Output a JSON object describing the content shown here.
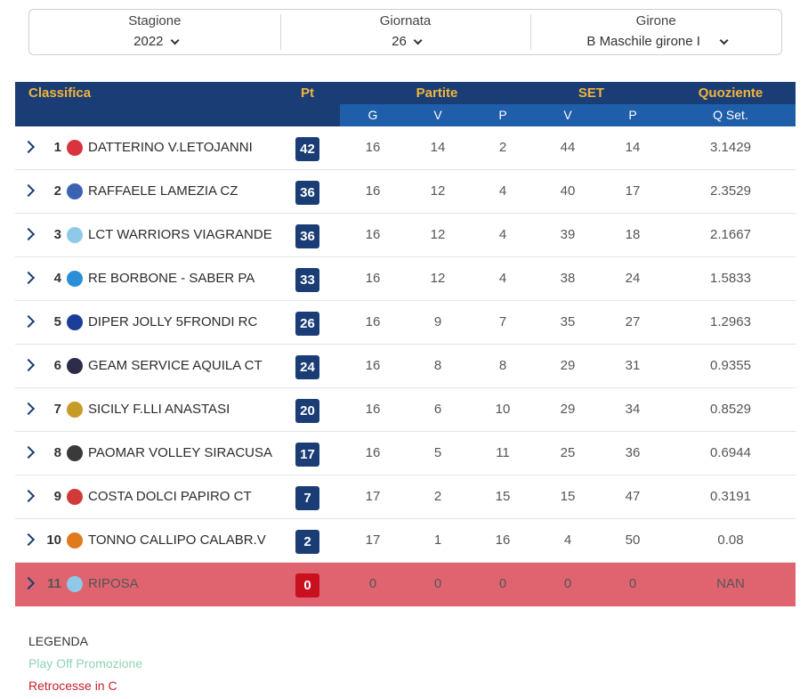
{
  "filters": [
    {
      "label": "Stagione",
      "value": "2022"
    },
    {
      "label": "Giornata",
      "value": "26"
    },
    {
      "label": "Girone",
      "value": "B Maschile girone I"
    }
  ],
  "table": {
    "headers": {
      "classifica": "Classifica",
      "pt": "Pt",
      "partite": "Partite",
      "set": "SET",
      "quoziente": "Quoziente",
      "g": "G",
      "v": "V",
      "p": "P",
      "set_v": "V",
      "set_p": "P",
      "qset": "Q Set."
    },
    "rows": [
      {
        "pos": "1",
        "team": "DATTERINO V.LETOJANNI",
        "pt": "42",
        "g": "16",
        "v": "14",
        "p": "2",
        "sv": "44",
        "sp": "14",
        "q": "3.1429",
        "logo_color": "#d9343d"
      },
      {
        "pos": "2",
        "team": "RAFFAELE LAMEZIA CZ",
        "pt": "36",
        "g": "16",
        "v": "12",
        "p": "4",
        "sv": "40",
        "sp": "17",
        "q": "2.3529",
        "logo_color": "#3a62b0"
      },
      {
        "pos": "3",
        "team": "LCT WARRIORS VIAGRANDE",
        "pt": "36",
        "g": "16",
        "v": "12",
        "p": "4",
        "sv": "39",
        "sp": "18",
        "q": "2.1667",
        "logo_color": "#8ec9e8"
      },
      {
        "pos": "4",
        "team": "RE BORBONE - SABER PA",
        "pt": "33",
        "g": "16",
        "v": "12",
        "p": "4",
        "sv": "38",
        "sp": "24",
        "q": "1.5833",
        "logo_color": "#2a8fd6"
      },
      {
        "pos": "5",
        "team": "DIPER JOLLY 5FRONDI RC",
        "pt": "26",
        "g": "16",
        "v": "9",
        "p": "7",
        "sv": "35",
        "sp": "27",
        "q": "1.2963",
        "logo_color": "#1b3d9a"
      },
      {
        "pos": "6",
        "team": "GEAM SERVICE AQUILA CT",
        "pt": "24",
        "g": "16",
        "v": "8",
        "p": "8",
        "sv": "29",
        "sp": "31",
        "q": "0.9355",
        "logo_color": "#2c2c4a"
      },
      {
        "pos": "7",
        "team": "SICILY F.LLI ANASTASI",
        "pt": "20",
        "g": "16",
        "v": "6",
        "p": "10",
        "sv": "29",
        "sp": "34",
        "q": "0.8529",
        "logo_color": "#c79b2a"
      },
      {
        "pos": "8",
        "team": "PAOMAR VOLLEY SIRACUSA",
        "pt": "17",
        "g": "16",
        "v": "5",
        "p": "11",
        "sv": "25",
        "sp": "36",
        "q": "0.6944",
        "logo_color": "#3a3a3a"
      },
      {
        "pos": "9",
        "team": "COSTA DOLCI PAPIRO CT",
        "pt": "7",
        "g": "17",
        "v": "2",
        "p": "15",
        "sv": "15",
        "sp": "47",
        "q": "0.3191",
        "logo_color": "#d23a3a"
      },
      {
        "pos": "10",
        "team": "TONNO CALLIPO CALABR.V",
        "pt": "2",
        "g": "17",
        "v": "1",
        "p": "16",
        "sv": "4",
        "sp": "50",
        "q": "0.08",
        "logo_color": "#e07a1f"
      },
      {
        "pos": "11",
        "team": "RIPOSA",
        "pt": "0",
        "g": "0",
        "v": "0",
        "p": "0",
        "sv": "0",
        "sp": "0",
        "q": "NAN",
        "logo_color": "#8ec9e8"
      }
    ]
  },
  "legend": {
    "title": "LEGENDA",
    "promotion": "Play Off Promozione",
    "relegation": "Retrocesse in C"
  },
  "colors": {
    "header_dark": "#1b3d75",
    "header_sub": "#1f5ea8",
    "header_gold": "#f0b43a",
    "relegation_row": "#e06470",
    "relegation_badge": "#c8101e",
    "promotion_text": "#8fd3b3"
  }
}
